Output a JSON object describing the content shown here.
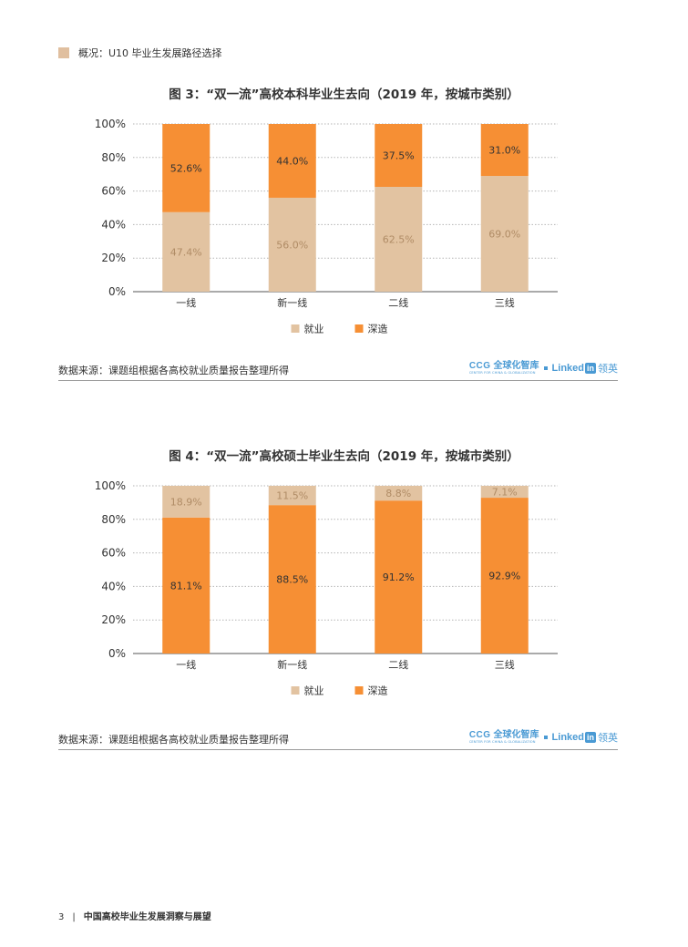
{
  "section": {
    "label": "概况：U10 毕业生发展路径选择",
    "color": "#e0bf9f"
  },
  "colors": {
    "employment": "#e2c3a1",
    "study": "#f68f34",
    "grid": "#b5b5b5",
    "axis": "#555555"
  },
  "chart_data": [
    {
      "type": "bar",
      "stacked": true,
      "title": "图 3：“双一流”高校本科毕业生去向（2019 年，按城市类别）",
      "categories": [
        "一线",
        "新一线",
        "二线",
        "三线"
      ],
      "yticks": [
        "0%",
        "20%",
        "40%",
        "60%",
        "80%",
        "100%"
      ],
      "ylim": [
        0,
        100
      ],
      "grid": true,
      "legend_position": "bottom",
      "series": [
        {
          "name": "就业",
          "color": "#e2c3a1",
          "values": [
            47.4,
            56.0,
            62.5,
            69.0
          ],
          "labels": [
            "47.4%",
            "56.0%",
            "62.5%",
            "69.0%"
          ]
        },
        {
          "name": "深造",
          "color": "#f68f34",
          "values": [
            52.6,
            44.0,
            37.5,
            31.0
          ],
          "labels": [
            "52.6%",
            "44.0%",
            "37.5%",
            "31.0%"
          ]
        }
      ]
    },
    {
      "type": "bar",
      "stacked": true,
      "title": "图 4：“双一流”高校硕士毕业生去向（2019 年，按城市类别）",
      "categories": [
        "一线",
        "新一线",
        "二线",
        "三线"
      ],
      "yticks": [
        "0%",
        "20%",
        "40%",
        "60%",
        "80%",
        "100%"
      ],
      "ylim": [
        0,
        100
      ],
      "grid": true,
      "legend_position": "bottom",
      "series": [
        {
          "name": "深造",
          "color": "#f68f34",
          "values": [
            81.1,
            88.5,
            91.2,
            92.9
          ],
          "labels": [
            "81.1%",
            "88.5%",
            "91.2%",
            "92.9%"
          ]
        },
        {
          "name": "就业",
          "color": "#e2c3a1",
          "values": [
            18.9,
            11.5,
            8.8,
            7.1
          ],
          "labels": [
            "18.9%",
            "11.5%",
            "8.8%",
            "7.1%"
          ]
        }
      ],
      "legend_order": [
        "就业",
        "深造"
      ]
    }
  ],
  "source": {
    "text": "数据来源：课题组根据各高校就业质量报告整理所得",
    "ccg_letters": "CCG",
    "ccg_cn": "全球化智库",
    "ccg_sub": "CENTER FOR CHINA & GLOBALIZATION",
    "linkedin_text": "Linked",
    "linkedin_box": "in",
    "linkedin_cn": "领英"
  },
  "footer": {
    "page": "3",
    "separator": "|",
    "title": "中国高校毕业生发展洞察与展望"
  }
}
